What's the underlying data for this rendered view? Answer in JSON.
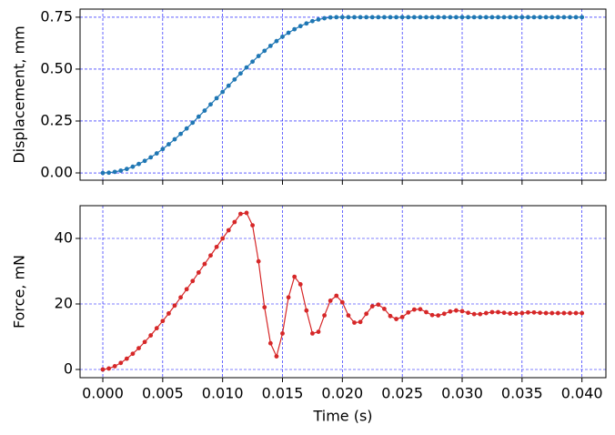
{
  "chart_data": [
    {
      "type": "line",
      "y_label": "Displacement, mm",
      "color": "#1f77b4",
      "grid": true,
      "x": [
        0,
        0.0005,
        0.001,
        0.0015,
        0.002,
        0.0025,
        0.003,
        0.0035,
        0.004,
        0.0045,
        0.005,
        0.0055,
        0.006,
        0.0065,
        0.007,
        0.0075,
        0.008,
        0.0085,
        0.009,
        0.0095,
        0.01,
        0.0105,
        0.011,
        0.0115,
        0.012,
        0.0125,
        0.013,
        0.0135,
        0.014,
        0.0145,
        0.015,
        0.0155,
        0.016,
        0.0165,
        0.017,
        0.0175,
        0.018,
        0.0185,
        0.019,
        0.0195,
        0.02,
        0.0205,
        0.021,
        0.0215,
        0.022,
        0.0225,
        0.023,
        0.0235,
        0.024,
        0.0245,
        0.025,
        0.0255,
        0.026,
        0.0265,
        0.027,
        0.0275,
        0.028,
        0.0285,
        0.029,
        0.0295,
        0.03,
        0.0305,
        0.031,
        0.0315,
        0.032,
        0.0325,
        0.033,
        0.0335,
        0.034,
        0.0345,
        0.035,
        0.0355,
        0.036,
        0.0365,
        0.037,
        0.0375,
        0.038,
        0.0385,
        0.039,
        0.0395,
        0.04
      ],
      "values": [
        0,
        0.001,
        0.005,
        0.011,
        0.019,
        0.03,
        0.043,
        0.058,
        0.075,
        0.094,
        0.115,
        0.138,
        0.162,
        0.188,
        0.214,
        0.242,
        0.271,
        0.3,
        0.33,
        0.36,
        0.39,
        0.42,
        0.45,
        0.479,
        0.508,
        0.536,
        0.563,
        0.588,
        0.612,
        0.635,
        0.656,
        0.675,
        0.692,
        0.707,
        0.72,
        0.731,
        0.739,
        0.745,
        0.749,
        0.75,
        0.75,
        0.75,
        0.75,
        0.75,
        0.75,
        0.75,
        0.75,
        0.75,
        0.75,
        0.75,
        0.75,
        0.75,
        0.75,
        0.75,
        0.75,
        0.75,
        0.75,
        0.75,
        0.75,
        0.75,
        0.75,
        0.75,
        0.75,
        0.75,
        0.75,
        0.75,
        0.75,
        0.75,
        0.75,
        0.75,
        0.75,
        0.75,
        0.75,
        0.75,
        0.75,
        0.75,
        0.75,
        0.75,
        0.75,
        0.75,
        0.75
      ],
      "xlim": [
        -0.0019,
        0.042
      ],
      "ylim": [
        -0.035,
        0.789
      ],
      "xticks": [
        0,
        0.005,
        0.01,
        0.015,
        0.02,
        0.025,
        0.03,
        0.035,
        0.04
      ],
      "yticks": [
        {
          "value": 0,
          "label": "0.00"
        },
        {
          "value": 0.25,
          "label": "0.25"
        },
        {
          "value": 0.5,
          "label": "0.50"
        },
        {
          "value": 0.75,
          "label": "0.75"
        }
      ]
    },
    {
      "type": "line",
      "y_label": "Force, mN",
      "x_label": "Time (s)",
      "color": "#d62728",
      "grid": true,
      "x": [
        0,
        0.0005,
        0.001,
        0.0015,
        0.002,
        0.0025,
        0.003,
        0.0035,
        0.004,
        0.0045,
        0.005,
        0.0055,
        0.006,
        0.0065,
        0.007,
        0.0075,
        0.008,
        0.0085,
        0.009,
        0.0095,
        0.01,
        0.0105,
        0.011,
        0.0115,
        0.012,
        0.0125,
        0.013,
        0.0135,
        0.014,
        0.0145,
        0.015,
        0.0155,
        0.016,
        0.0165,
        0.017,
        0.0175,
        0.018,
        0.0185,
        0.019,
        0.0195,
        0.02,
        0.0205,
        0.021,
        0.0215,
        0.022,
        0.0225,
        0.023,
        0.0235,
        0.024,
        0.0245,
        0.025,
        0.0255,
        0.026,
        0.0265,
        0.027,
        0.0275,
        0.028,
        0.0285,
        0.029,
        0.0295,
        0.03,
        0.0305,
        0.031,
        0.0315,
        0.032,
        0.0325,
        0.033,
        0.0335,
        0.034,
        0.0345,
        0.035,
        0.0355,
        0.036,
        0.0365,
        0.037,
        0.0375,
        0.038,
        0.0385,
        0.039,
        0.0395,
        0.04
      ],
      "values": [
        0,
        0.3,
        1,
        2,
        3.3,
        4.8,
        6.5,
        8.4,
        10.4,
        12.6,
        14.8,
        17.1,
        19.5,
        22,
        24.5,
        27,
        29.6,
        32.2,
        34.8,
        37.4,
        40,
        42.5,
        45,
        47.5,
        47.8,
        44,
        33,
        19,
        8,
        4,
        11,
        22,
        28.3,
        26,
        18,
        11,
        11.5,
        16.5,
        21,
        22.5,
        20.5,
        16.5,
        14.3,
        14.5,
        17,
        19.3,
        19.8,
        18.5,
        16.3,
        15.4,
        16,
        17.4,
        18.3,
        18.4,
        17.5,
        16.6,
        16.5,
        17,
        17.7,
        18,
        17.8,
        17.3,
        16.9,
        16.9,
        17.2,
        17.5,
        17.5,
        17.3,
        17.1,
        17.1,
        17.2,
        17.4,
        17.4,
        17.3,
        17.2,
        17.2,
        17.2,
        17.2,
        17.2,
        17.2,
        17.2
      ],
      "xlim": [
        -0.0019,
        0.042
      ],
      "ylim": [
        -2.5,
        50
      ],
      "xticks": [
        {
          "value": 0,
          "label": "0.000"
        },
        {
          "value": 0.005,
          "label": "0.005"
        },
        {
          "value": 0.01,
          "label": "0.010"
        },
        {
          "value": 0.015,
          "label": "0.015"
        },
        {
          "value": 0.02,
          "label": "0.020"
        },
        {
          "value": 0.025,
          "label": "0.025"
        },
        {
          "value": 0.03,
          "label": "0.030"
        },
        {
          "value": 0.035,
          "label": "0.035"
        },
        {
          "value": 0.04,
          "label": "0.040"
        }
      ],
      "yticks": [
        0,
        20,
        40
      ]
    }
  ]
}
